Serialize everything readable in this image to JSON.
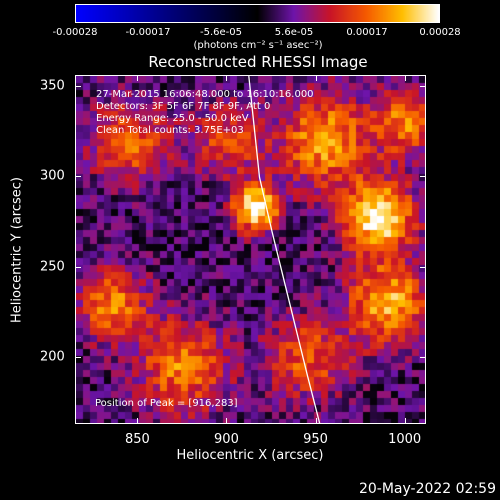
{
  "colorbar": {
    "ticks": [
      "-0.00028",
      "-0.00017",
      "-5.6e-05",
      "5.6e-05",
      "0.00017",
      "0.00028"
    ],
    "units": "(photons cm⁻² s⁻¹ asec⁻²)",
    "range": [
      -0.00028,
      0.00028
    ]
  },
  "annotations": {
    "line1": "27-Mar-2015 16:06:48.000 to 16:10:16.000",
    "line2": "Detectors: 3F 5F 6F 7F 8F 9F, Att 0",
    "line3": "Energy Range: 25.0 - 50.0 keV",
    "line4": "Clean     Total counts: 3.75E+03",
    "peak": "Position of Peak = [916,283]"
  },
  "timestamp": "20-May-2022 02:59",
  "chart_data": {
    "type": "heatmap",
    "title": "Reconstructed RHESSI Image",
    "xlabel": "Heliocentric X (arcsec)",
    "ylabel": "Heliocentric Y (arcsec)",
    "xlim": [
      815,
      1012
    ],
    "ylim": [
      163,
      356
    ],
    "xticks": [
      "850",
      "900",
      "950",
      "1000"
    ],
    "yticks": [
      "200",
      "250",
      "300",
      "350"
    ],
    "xtick_values": [
      850,
      900,
      950,
      1000
    ],
    "ytick_values": [
      200,
      250,
      300,
      350
    ],
    "peak": [
      916,
      283
    ],
    "limb": [
      [
        912,
        356
      ],
      [
        918,
        300
      ],
      [
        925,
        270
      ],
      [
        935,
        230
      ],
      [
        945,
        190
      ],
      [
        952,
        163
      ]
    ],
    "sources": [
      {
        "x": 916,
        "y": 283,
        "amp": 1.0,
        "s": 9
      },
      {
        "x": 985,
        "y": 278,
        "amp": 0.95,
        "s": 14
      },
      {
        "x": 955,
        "y": 320,
        "amp": 0.7,
        "s": 18
      },
      {
        "x": 990,
        "y": 230,
        "amp": 0.75,
        "s": 16
      },
      {
        "x": 845,
        "y": 320,
        "amp": 0.55,
        "s": 16
      },
      {
        "x": 835,
        "y": 230,
        "amp": 0.6,
        "s": 14
      },
      {
        "x": 875,
        "y": 195,
        "amp": 0.6,
        "s": 18
      },
      {
        "x": 945,
        "y": 200,
        "amp": 0.5,
        "s": 16
      },
      {
        "x": 1000,
        "y": 330,
        "amp": 0.6,
        "s": 12
      },
      {
        "x": 900,
        "y": 320,
        "amp": 0.45,
        "s": 14
      }
    ]
  }
}
